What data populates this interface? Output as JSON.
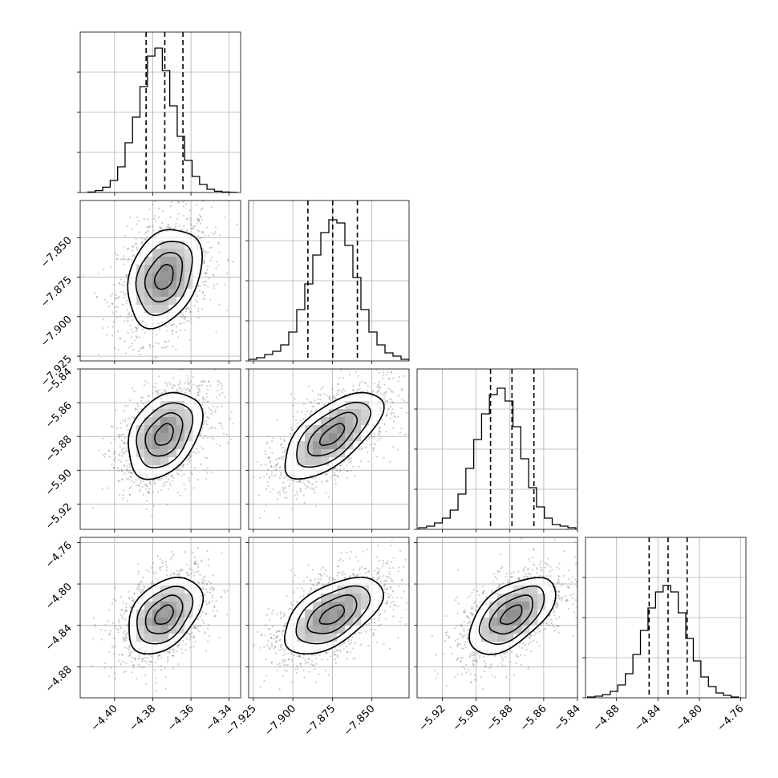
{
  "chart_data": {
    "type": "corner",
    "title": "",
    "parameters": [
      {
        "axis_range": [
          -4.418,
          -4.334
        ],
        "tick_values": [
          -4.4,
          -4.38,
          -4.36,
          -4.34
        ],
        "tick_labels": [
          "−4.40",
          "−4.38",
          "−4.36",
          "−4.34"
        ],
        "hist_edges_range": [
          -4.414,
          -4.336
        ],
        "hist_counts": [
          0.003,
          0.012,
          0.033,
          0.075,
          0.16,
          0.31,
          0.47,
          0.66,
          0.85,
          0.9,
          0.76,
          0.54,
          0.35,
          0.2,
          0.1,
          0.05,
          0.02,
          0.008,
          0.003,
          0.001
        ],
        "quantiles": [
          -4.3835,
          -4.3737,
          -4.3642
        ],
        "mean": -4.374,
        "std": 0.0097
      },
      {
        "axis_range": [
          -7.928,
          -7.8265
        ],
        "tick_values": [
          -7.925,
          -7.9,
          -7.875,
          -7.85
        ],
        "tick_labels": [
          "−7.925",
          "−7.900",
          "−7.875",
          "−7.850"
        ],
        "hist_edges_range": [
          -7.928,
          -7.8265
        ],
        "hist_counts": [
          0.01,
          0.02,
          0.04,
          0.06,
          0.1,
          0.18,
          0.32,
          0.48,
          0.66,
          0.8,
          0.88,
          0.86,
          0.72,
          0.52,
          0.32,
          0.18,
          0.1,
          0.05,
          0.03,
          0.01
        ],
        "quantiles": [
          -7.8905,
          -7.8748,
          -7.8592
        ],
        "mean": -7.875,
        "std": 0.0156
      },
      {
        "axis_range": [
          -5.935,
          -5.84
        ],
        "tick_values": [
          -5.92,
          -5.9,
          -5.88,
          -5.86,
          -5.84
        ],
        "tick_labels": [
          "−5.92",
          "−5.90",
          "−5.88",
          "−5.86",
          "−5.84"
        ],
        "hist_edges_range": [
          -5.934,
          -5.841
        ],
        "hist_counts": [
          0.01,
          0.02,
          0.04,
          0.07,
          0.12,
          0.22,
          0.38,
          0.56,
          0.72,
          0.84,
          0.88,
          0.8,
          0.64,
          0.44,
          0.26,
          0.14,
          0.07,
          0.03,
          0.02,
          0.01
        ],
        "quantiles": [
          -5.8915,
          -5.8788,
          -5.8658
        ],
        "mean": -5.879,
        "std": 0.0128
      },
      {
        "axis_range": [
          -4.91,
          -4.755
        ],
        "tick_values": [
          -4.88,
          -4.84,
          -4.8,
          -4.76
        ],
        "tick_labels": [
          "−4.88",
          "−4.84",
          "−4.80",
          "−4.76"
        ],
        "hist_edges_range": [
          -4.908,
          -4.762
        ],
        "hist_counts": [
          0.005,
          0.01,
          0.02,
          0.04,
          0.08,
          0.15,
          0.27,
          0.42,
          0.56,
          0.66,
          0.7,
          0.66,
          0.53,
          0.37,
          0.23,
          0.13,
          0.07,
          0.03,
          0.015,
          0.005
        ],
        "quantiles": [
          -4.8485,
          -4.8302,
          -4.8118
        ],
        "mean": -4.83,
        "std": 0.0185
      }
    ],
    "correlations": [
      [
        1.0,
        0.3,
        0.35,
        0.4
      ],
      [
        0.3,
        1.0,
        0.65,
        0.55
      ],
      [
        0.35,
        0.65,
        1.0,
        0.55
      ],
      [
        0.4,
        0.55,
        0.55,
        1.0
      ]
    ],
    "contour_levels": [
      0.5,
      1.0,
      1.5,
      2.0
    ],
    "grid": true,
    "xlabel": "",
    "ylabel": ""
  }
}
